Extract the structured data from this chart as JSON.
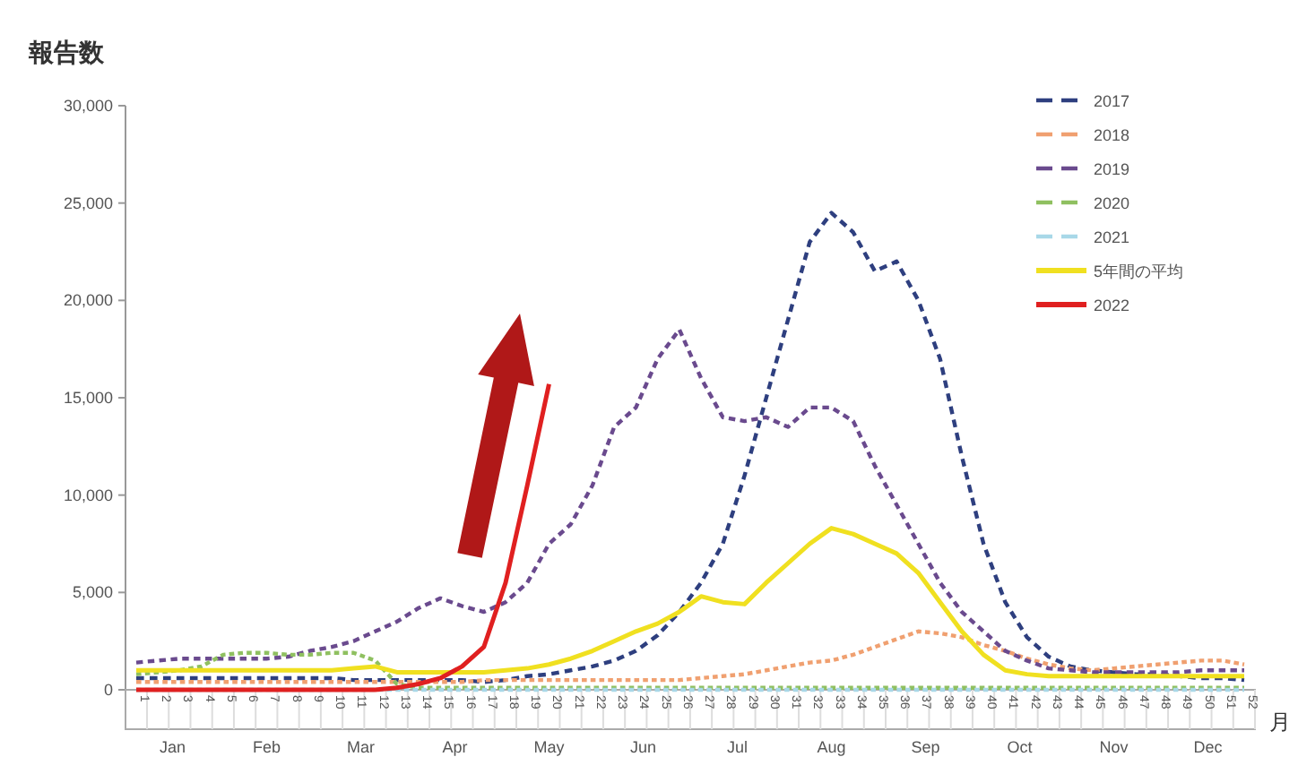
{
  "chart_data": {
    "type": "line",
    "ylabel": "報告数",
    "xlabel": "月",
    "x": [
      1,
      2,
      3,
      4,
      5,
      6,
      7,
      8,
      9,
      10,
      11,
      12,
      13,
      14,
      15,
      16,
      17,
      18,
      19,
      20,
      21,
      22,
      23,
      24,
      25,
      26,
      27,
      28,
      29,
      30,
      31,
      32,
      33,
      34,
      35,
      36,
      37,
      38,
      39,
      40,
      41,
      42,
      43,
      44,
      45,
      46,
      47,
      48,
      49,
      50,
      51,
      52
    ],
    "xlim": [
      1,
      52
    ],
    "xticks": [
      1,
      2,
      3,
      4,
      5,
      6,
      7,
      8,
      9,
      10,
      11,
      12,
      13,
      14,
      15,
      16,
      17,
      18,
      19,
      20,
      21,
      22,
      23,
      24,
      25,
      26,
      27,
      28,
      29,
      30,
      31,
      32,
      33,
      34,
      35,
      36,
      37,
      38,
      39,
      40,
      41,
      42,
      43,
      44,
      45,
      46,
      47,
      48,
      49,
      50,
      51,
      52
    ],
    "ylim": [
      0,
      30000
    ],
    "yticks": [
      0,
      {
        "value": 5000,
        "label": "5,000"
      },
      {
        "value": 10000,
        "label": "10,000"
      },
      {
        "value": 15000,
        "label": "15,000"
      },
      {
        "value": 20000,
        "label": "20,000"
      },
      {
        "value": 25000,
        "label": "25,000"
      },
      {
        "value": 30000,
        "label": "30,000"
      }
    ],
    "grid": false,
    "legend": "top right",
    "marker": "none",
    "series": [
      {
        "name": "2017",
        "color": "#2e3f7f",
        "line_style": "dashed",
        "values": [
          600,
          600,
          600,
          600,
          600,
          600,
          600,
          600,
          600,
          600,
          500,
          500,
          500,
          500,
          500,
          500,
          400,
          500,
          700,
          800,
          1000,
          1200,
          1500,
          2000,
          2800,
          4000,
          5500,
          7500,
          11000,
          15000,
          19000,
          23000,
          24500,
          23500,
          21500,
          22000,
          20000,
          17000,
          12000,
          7500,
          4500,
          2700,
          1700,
          1200,
          1000,
          900,
          800,
          800,
          700,
          600,
          600,
          500
        ]
      },
      {
        "name": "2018",
        "color": "#f0a070",
        "line_style": "dashed",
        "values": [
          400,
          400,
          400,
          400,
          400,
          400,
          400,
          400,
          400,
          400,
          400,
          400,
          400,
          400,
          400,
          400,
          500,
          500,
          500,
          500,
          500,
          500,
          500,
          500,
          500,
          500,
          600,
          700,
          800,
          1000,
          1200,
          1400,
          1500,
          1800,
          2200,
          2600,
          3000,
          2900,
          2700,
          2300,
          2000,
          1600,
          1300,
          1100,
          1000,
          1100,
          1200,
          1300,
          1400,
          1500,
          1500,
          1300
        ]
      },
      {
        "name": "2019",
        "color": "#6a4a8e",
        "line_style": "dashed",
        "values": [
          1400,
          1500,
          1600,
          1600,
          1600,
          1600,
          1600,
          1700,
          2000,
          2200,
          2500,
          3000,
          3500,
          4200,
          4700,
          4300,
          4000,
          4500,
          5500,
          7500,
          8500,
          10500,
          13500,
          14500,
          17000,
          18500,
          16000,
          14000,
          13800,
          14000,
          13500,
          14500,
          14500,
          13800,
          11500,
          9500,
          7500,
          5500,
          4000,
          3000,
          2000,
          1500,
          1100,
          1000,
          900,
          900,
          900,
          900,
          900,
          1000,
          1000,
          1000
        ]
      },
      {
        "name": "2020",
        "color": "#8fc060",
        "line_style": "dashed",
        "values": [
          800,
          900,
          1000,
          1200,
          1800,
          1900,
          1900,
          1800,
          1800,
          1900,
          1900,
          1500,
          300,
          100,
          100,
          100,
          100,
          100,
          100,
          100,
          100,
          100,
          100,
          100,
          100,
          100,
          100,
          100,
          100,
          100,
          100,
          100,
          100,
          100,
          100,
          100,
          100,
          100,
          100,
          100,
          100,
          100,
          100,
          100,
          100,
          100,
          100,
          100,
          100,
          100,
          100,
          100
        ]
      },
      {
        "name": "2021",
        "color": "#a8d8e8",
        "line_style": "dashed",
        "values": [
          0,
          0,
          0,
          0,
          0,
          0,
          0,
          0,
          0,
          0,
          0,
          0,
          0,
          0,
          0,
          0,
          0,
          0,
          0,
          0,
          0,
          0,
          0,
          0,
          0,
          0,
          0,
          0,
          0,
          0,
          0,
          0,
          0,
          0,
          0,
          0,
          0,
          0,
          0,
          0,
          0,
          0,
          0,
          0,
          0,
          0,
          0,
          0,
          0,
          0,
          0,
          0
        ]
      },
      {
        "name": "5年間の平均",
        "color": "#f0e020",
        "line_style": "solid",
        "values": [
          1000,
          1000,
          1000,
          1000,
          1000,
          1000,
          1000,
          1000,
          1000,
          1000,
          1100,
          1200,
          900,
          900,
          900,
          900,
          900,
          1000,
          1100,
          1300,
          1600,
          2000,
          2500,
          3000,
          3400,
          4000,
          4800,
          4500,
          4400,
          5500,
          6500,
          7500,
          8300,
          8000,
          7500,
          7000,
          6000,
          4500,
          3000,
          1800,
          1000,
          800,
          700,
          700,
          700,
          700,
          700,
          700,
          700,
          700,
          700,
          700
        ]
      },
      {
        "name": "2022",
        "color": "#e02020",
        "line_style": "solid",
        "values": [
          0,
          0,
          0,
          0,
          0,
          0,
          0,
          0,
          0,
          0,
          0,
          0,
          100,
          300,
          600,
          1200,
          2200,
          5500,
          10500,
          15700,
          null,
          null,
          null,
          null,
          null,
          null,
          null,
          null,
          null,
          null,
          null,
          null,
          null,
          null,
          null,
          null,
          null,
          null,
          null,
          null,
          null,
          null,
          null,
          null,
          null,
          null,
          null,
          null,
          null,
          null,
          null,
          null
        ]
      }
    ],
    "annotations": [
      "Jan",
      "Feb",
      "Mar",
      "Apr",
      "May",
      "Jun",
      "Jul",
      "Aug",
      "Sep",
      "Oct",
      "Nov",
      "Dec"
    ]
  }
}
